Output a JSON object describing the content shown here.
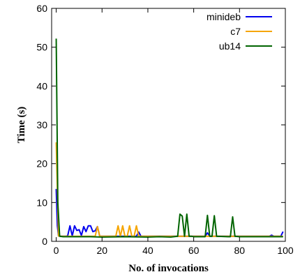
{
  "chart_data": {
    "type": "line",
    "xlabel": "No. of invocations",
    "ylabel": "Time (s)",
    "xlim": [
      -2,
      100
    ],
    "ylim": [
      0,
      60
    ],
    "xticks": [
      0,
      20,
      40,
      60,
      80,
      100
    ],
    "yticks": [
      0,
      10,
      20,
      30,
      40,
      50,
      60
    ],
    "grid": false,
    "legend_position": "top-right",
    "series": [
      {
        "name": "minideb",
        "color": "#0000ee",
        "x": [
          0,
          0.5,
          1,
          2,
          3,
          4,
          5,
          6,
          7,
          8,
          9,
          10,
          11,
          12,
          13,
          14,
          15,
          16,
          17,
          18,
          19,
          20,
          25,
          30,
          34,
          35,
          36,
          37,
          40,
          45,
          50,
          55,
          60,
          65,
          66,
          67,
          70,
          75,
          80,
          85,
          90,
          93,
          94,
          95,
          98,
          99
        ],
        "y": [
          13.5,
          4.0,
          1.4,
          1.3,
          1.3,
          1.3,
          1.4,
          4.0,
          1.4,
          4.0,
          2.8,
          3.0,
          1.5,
          3.8,
          2.5,
          4.0,
          4.0,
          2.5,
          2.7,
          3.8,
          1.3,
          1.3,
          1.3,
          1.3,
          1.3,
          1.3,
          2.4,
          1.3,
          1.3,
          1.3,
          1.3,
          1.3,
          1.3,
          1.3,
          2.2,
          1.3,
          1.3,
          1.3,
          1.3,
          1.3,
          1.3,
          1.3,
          1.6,
          1.3,
          1.3,
          2.5
        ]
      },
      {
        "name": "c7",
        "color": "#f5a500",
        "x": [
          0,
          1,
          2,
          10,
          17,
          18,
          19,
          20,
          26,
          27,
          28,
          29,
          30,
          31,
          32,
          33,
          34,
          35,
          36,
          37,
          45,
          55,
          65,
          75,
          85,
          95,
          99
        ],
        "y": [
          25.5,
          1.4,
          1.3,
          1.3,
          1.3,
          3.8,
          1.3,
          1.3,
          1.3,
          4.0,
          1.3,
          4.0,
          1.3,
          1.3,
          4.0,
          1.3,
          1.3,
          4.0,
          1.3,
          1.3,
          1.3,
          1.3,
          1.3,
          1.3,
          1.3,
          1.3,
          1.3
        ]
      },
      {
        "name": "ub14",
        "color": "#006400",
        "x": [
          0,
          0.7,
          1.5,
          3,
          6,
          10,
          15,
          20,
          30,
          40,
          45,
          50,
          53,
          54,
          55,
          56,
          57,
          58,
          59,
          60,
          65,
          66,
          67,
          68,
          69,
          70,
          75,
          76,
          77,
          78,
          80,
          85,
          90,
          95,
          99
        ],
        "y": [
          52.2,
          10.0,
          1.3,
          1.2,
          1.2,
          1.2,
          1.2,
          1.1,
          1.2,
          1.1,
          1.2,
          1.1,
          1.3,
          7.0,
          6.5,
          1.3,
          7.0,
          1.3,
          1.3,
          1.2,
          1.2,
          6.7,
          1.3,
          1.3,
          6.6,
          1.3,
          1.2,
          1.2,
          6.3,
          1.3,
          1.2,
          1.2,
          1.2,
          1.2,
          1.2
        ]
      }
    ]
  }
}
